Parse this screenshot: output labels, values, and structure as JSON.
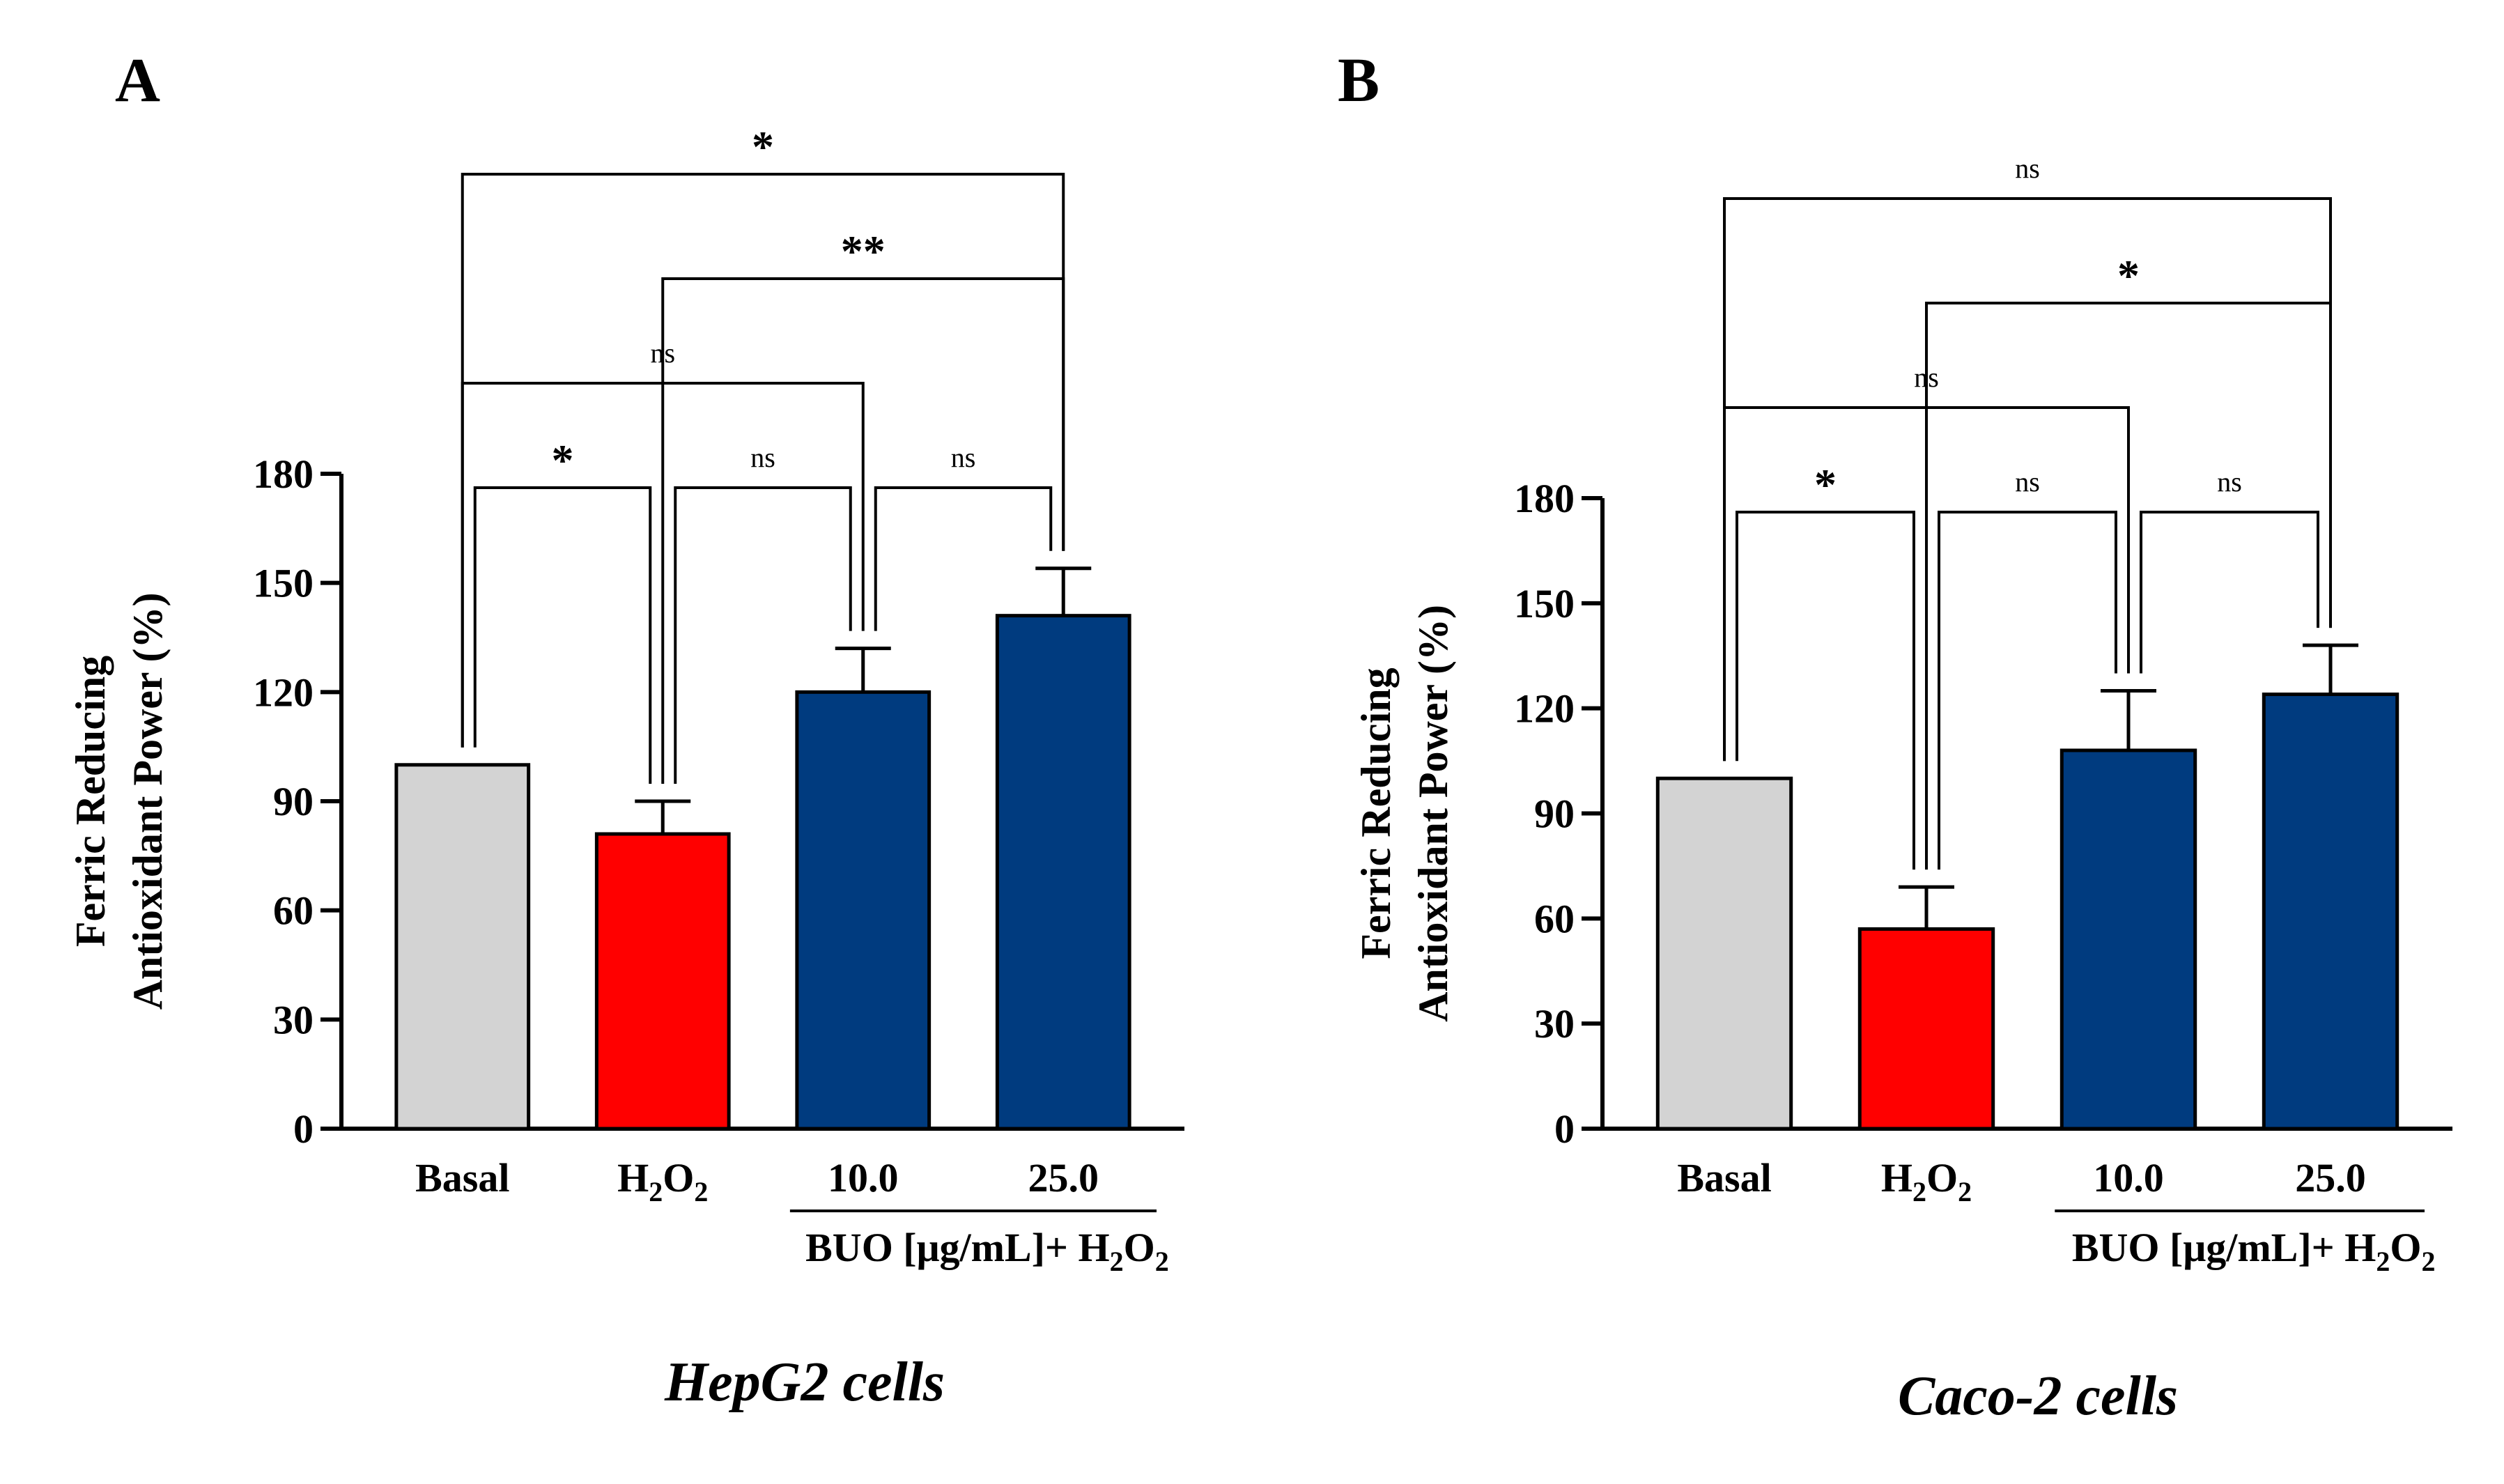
{
  "chart_data": [
    {
      "panel": "A",
      "type": "bar",
      "title": "HepG2 cells",
      "ylabel_lines": [
        "Ferric Reducing",
        "Antioxidant Power (%)"
      ],
      "ylim": [
        0,
        180
      ],
      "yticks": [
        0,
        30,
        60,
        90,
        120,
        150,
        180
      ],
      "group_label": "BUO [μg/mL]+ H2O2",
      "categories": [
        "Basal",
        "H2O2",
        "10.0",
        "25.0"
      ],
      "values": [
        100,
        81,
        120,
        141
      ],
      "errors": [
        0,
        9,
        12,
        13
      ],
      "colors": [
        "#d3d3d3",
        "#ff0000",
        "#003b7f",
        "#003b7f"
      ],
      "comparisons": [
        {
          "from": 0,
          "to": 1,
          "label": "*"
        },
        {
          "from": 1,
          "to": 2,
          "label": "ns"
        },
        {
          "from": 2,
          "to": 3,
          "label": "ns"
        },
        {
          "from": 0,
          "to": 2,
          "label": "ns"
        },
        {
          "from": 1,
          "to": 3,
          "label": "**"
        },
        {
          "from": 0,
          "to": 3,
          "label": "*"
        }
      ]
    },
    {
      "panel": "B",
      "type": "bar",
      "title": "Caco-2 cells",
      "ylabel_lines": [
        "Ferric Reducing",
        "Antioxidant Power (%)"
      ],
      "ylim": [
        0,
        180
      ],
      "yticks": [
        0,
        30,
        60,
        90,
        120,
        150,
        180
      ],
      "group_label": "BUO [μg/mL]+ H2O2",
      "categories": [
        "Basal",
        "H2O2",
        "10.0",
        "25.0"
      ],
      "values": [
        100,
        57,
        108,
        124
      ],
      "errors": [
        0,
        12,
        17,
        14
      ],
      "colors": [
        "#d3d3d3",
        "#ff0000",
        "#003b7f",
        "#003b7f"
      ],
      "comparisons": [
        {
          "from": 0,
          "to": 1,
          "label": "*"
        },
        {
          "from": 1,
          "to": 2,
          "label": "ns"
        },
        {
          "from": 2,
          "to": 3,
          "label": "ns"
        },
        {
          "from": 0,
          "to": 2,
          "label": "ns"
        },
        {
          "from": 1,
          "to": 3,
          "label": "*"
        },
        {
          "from": 0,
          "to": 3,
          "label": "ns"
        }
      ]
    }
  ]
}
